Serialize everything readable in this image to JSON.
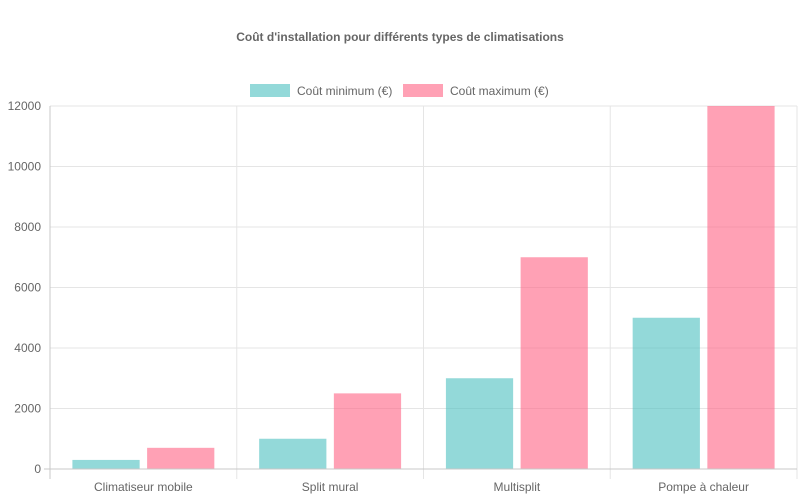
{
  "chart_data": {
    "type": "bar",
    "title": "Coût d'installation pour différents types de climatisations",
    "categories": [
      "Climatiseur mobile",
      "Split mural",
      "Multisplit",
      "Pompe à chaleur"
    ],
    "series": [
      {
        "name": "Coût minimum (€)",
        "values": [
          300,
          1000,
          3000,
          5000
        ],
        "color": "#4BC0C0"
      },
      {
        "name": "Coût maximum (€)",
        "values": [
          700,
          2500,
          7000,
          12000
        ],
        "color": "#FF6384"
      }
    ],
    "ylim": [
      0,
      12000
    ],
    "yticks": [
      0,
      2000,
      4000,
      6000,
      8000,
      10000,
      12000
    ],
    "grid": true,
    "legend_position": "top"
  }
}
